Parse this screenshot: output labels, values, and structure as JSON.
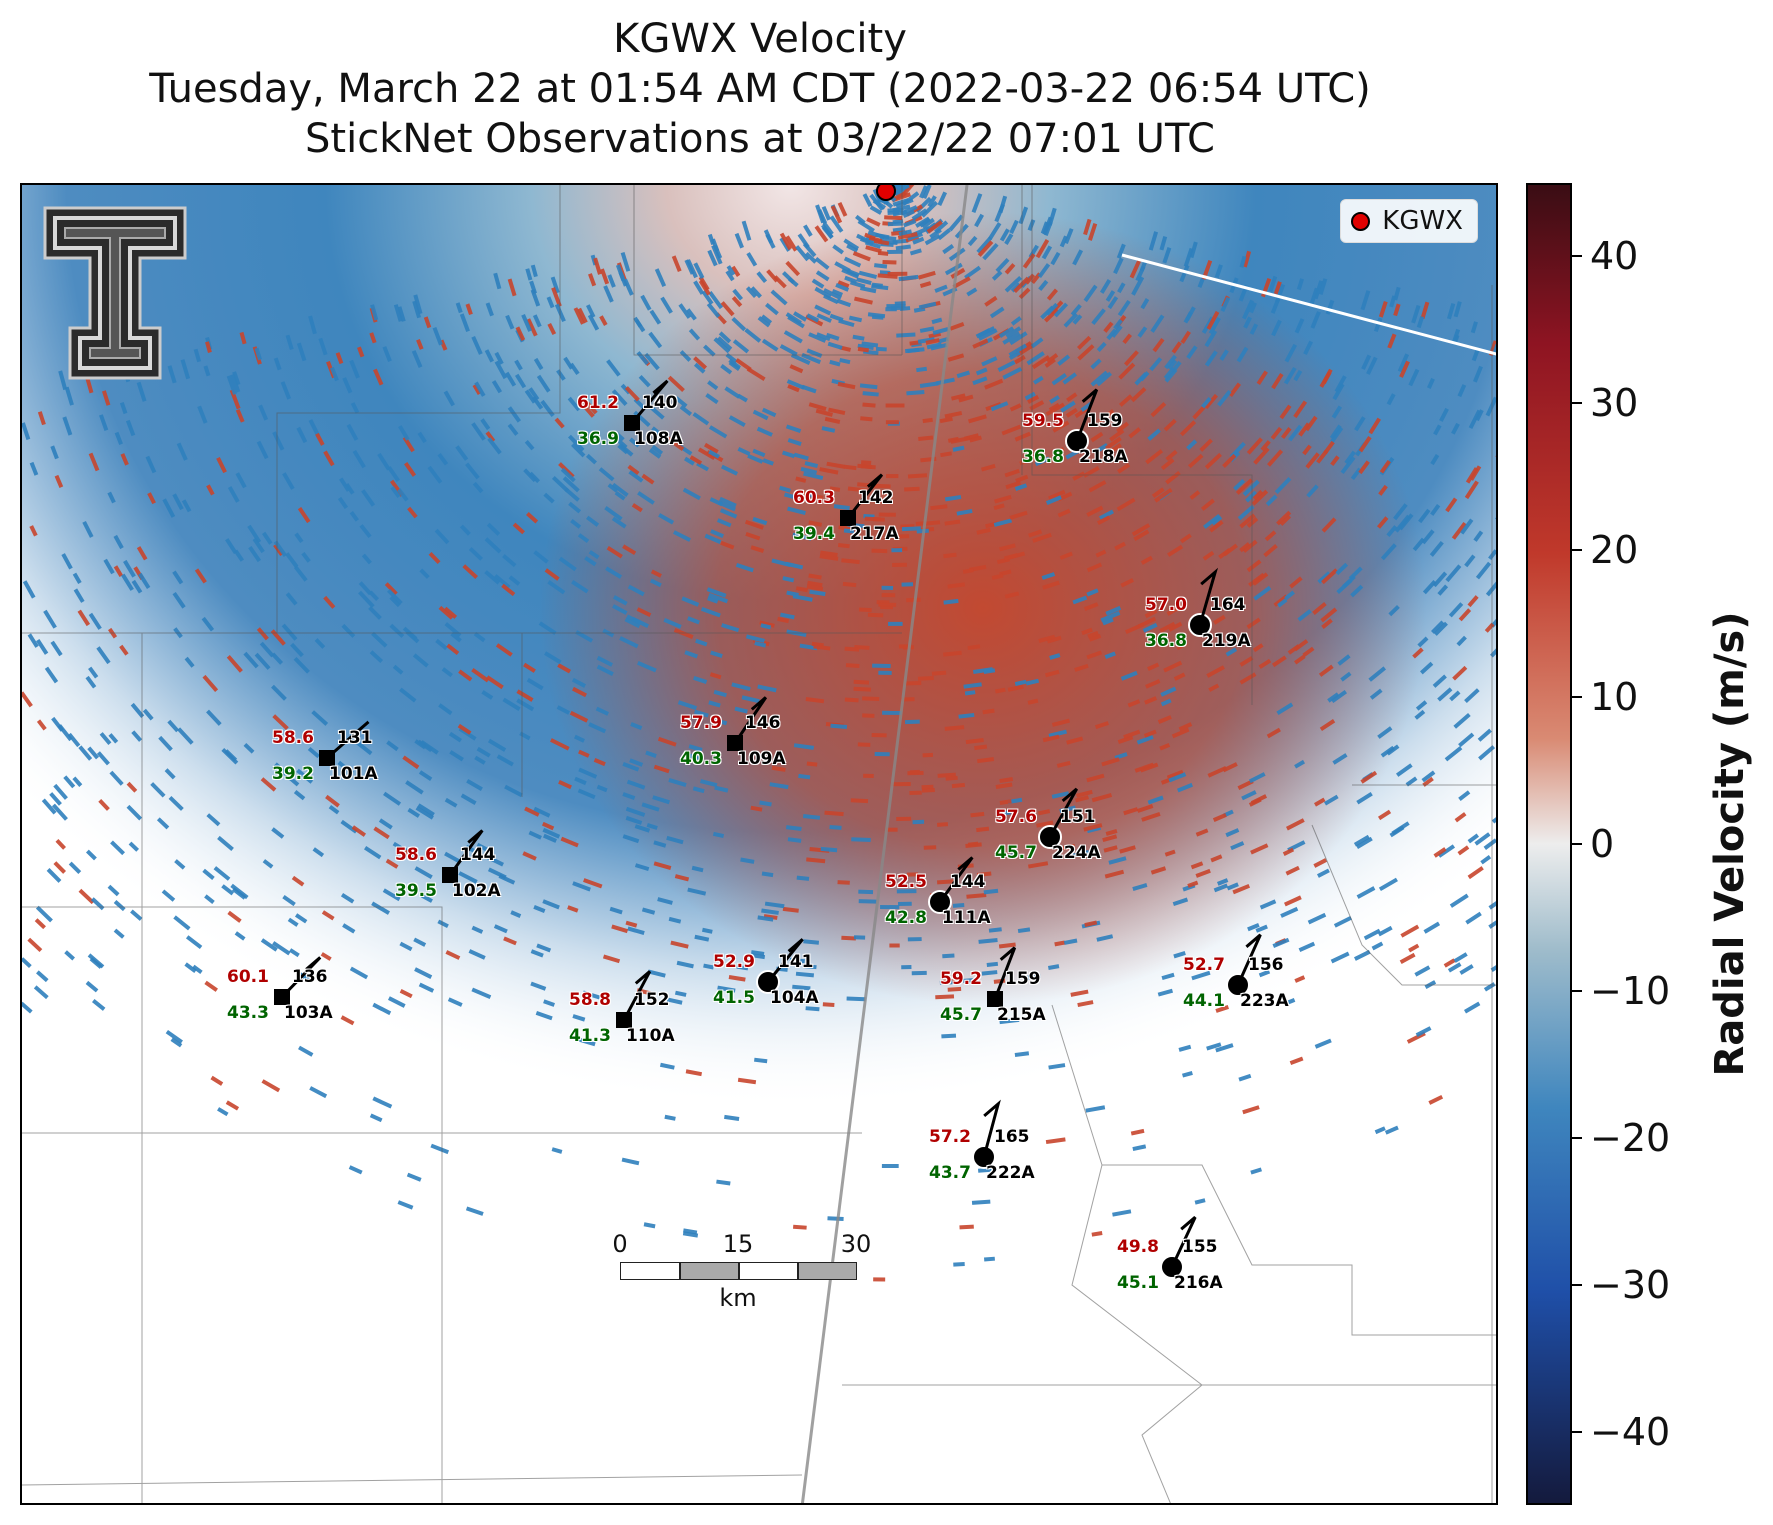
{
  "title": {
    "line1": "KGWX Velocity",
    "line2": "Tuesday, March 22 at 01:54 AM CDT (2022-03-22 06:54 UTC)",
    "line3": "StickNet Observations at 03/22/22 07:01 UTC"
  },
  "legend": {
    "label": "KGWX",
    "color": "#e00000"
  },
  "scalebar": {
    "ticks": [
      "0",
      "15",
      "30"
    ],
    "unit": "km"
  },
  "colorbar": {
    "title": "Radial Velocity (m/s)",
    "ticks": [
      "40",
      "30",
      "20",
      "10",
      "0",
      "−10",
      "−20",
      "−30",
      "−40"
    ],
    "range": [
      -45,
      45
    ],
    "colormap": "diverging blue-white-red"
  },
  "stations": [
    {
      "id": "108A",
      "temp": "61.2",
      "dew": "36.9",
      "dir": "140",
      "marker": "square"
    },
    {
      "id": "218A",
      "temp": "59.5",
      "dew": "36.8",
      "dir": "159",
      "marker": "circle"
    },
    {
      "id": "217A",
      "temp": "60.3",
      "dew": "39.4",
      "dir": "142",
      "marker": "square"
    },
    {
      "id": "219A",
      "temp": "57.0",
      "dew": "36.8",
      "dir": "164",
      "marker": "circle"
    },
    {
      "id": "109A",
      "temp": "57.9",
      "dew": "40.3",
      "dir": "146",
      "marker": "square"
    },
    {
      "id": "101A",
      "temp": "58.6",
      "dew": "39.2",
      "dir": "131",
      "marker": "square"
    },
    {
      "id": "224A",
      "temp": "57.6",
      "dew": "45.7",
      "dir": "151",
      "marker": "circle"
    },
    {
      "id": "102A",
      "temp": "58.6",
      "dew": "39.5",
      "dir": "144",
      "marker": "square"
    },
    {
      "id": "111A",
      "temp": "52.5",
      "dew": "42.8",
      "dir": "144",
      "marker": "circle"
    },
    {
      "id": "104A",
      "temp": "52.9",
      "dew": "41.5",
      "dir": "141",
      "marker": "circle"
    },
    {
      "id": "223A",
      "temp": "52.7",
      "dew": "44.1",
      "dir": "156",
      "marker": "circle"
    },
    {
      "id": "103A",
      "temp": "60.1",
      "dew": "43.3",
      "dir": "136",
      "marker": "square"
    },
    {
      "id": "110A",
      "temp": "58.8",
      "dew": "41.3",
      "dir": "152",
      "marker": "square"
    },
    {
      "id": "215A",
      "temp": "59.2",
      "dew": "45.7",
      "dir": "159",
      "marker": "square"
    },
    {
      "id": "222A",
      "temp": "57.2",
      "dew": "43.7",
      "dir": "165",
      "marker": "circle"
    },
    {
      "id": "216A",
      "temp": "49.8",
      "dew": "45.1",
      "dir": "155",
      "marker": "circle"
    }
  ]
}
